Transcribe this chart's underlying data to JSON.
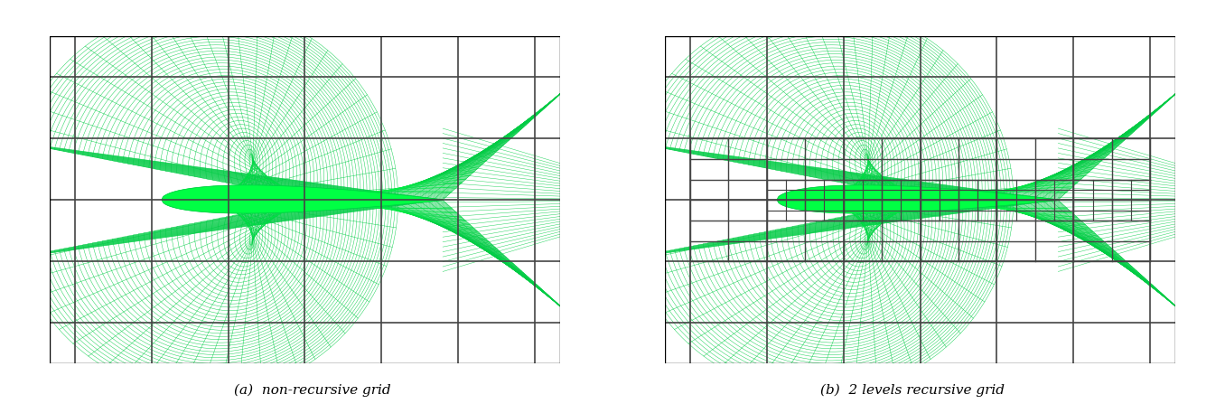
{
  "fig_width": 13.56,
  "fig_height": 4.47,
  "dpi": 100,
  "background_color": "#ffffff",
  "caption_a": "(a)  non-recursive grid",
  "caption_b": "(b)  2 levels recursive grid",
  "caption_fontsize": 11,
  "mesh_green": "#00cc44",
  "mesh_green_bright": "#00ff44",
  "coarse_color": "#444444",
  "coarse_lw": 1.2,
  "fine_lw": 0.35,
  "wake_green": "#00ee33"
}
